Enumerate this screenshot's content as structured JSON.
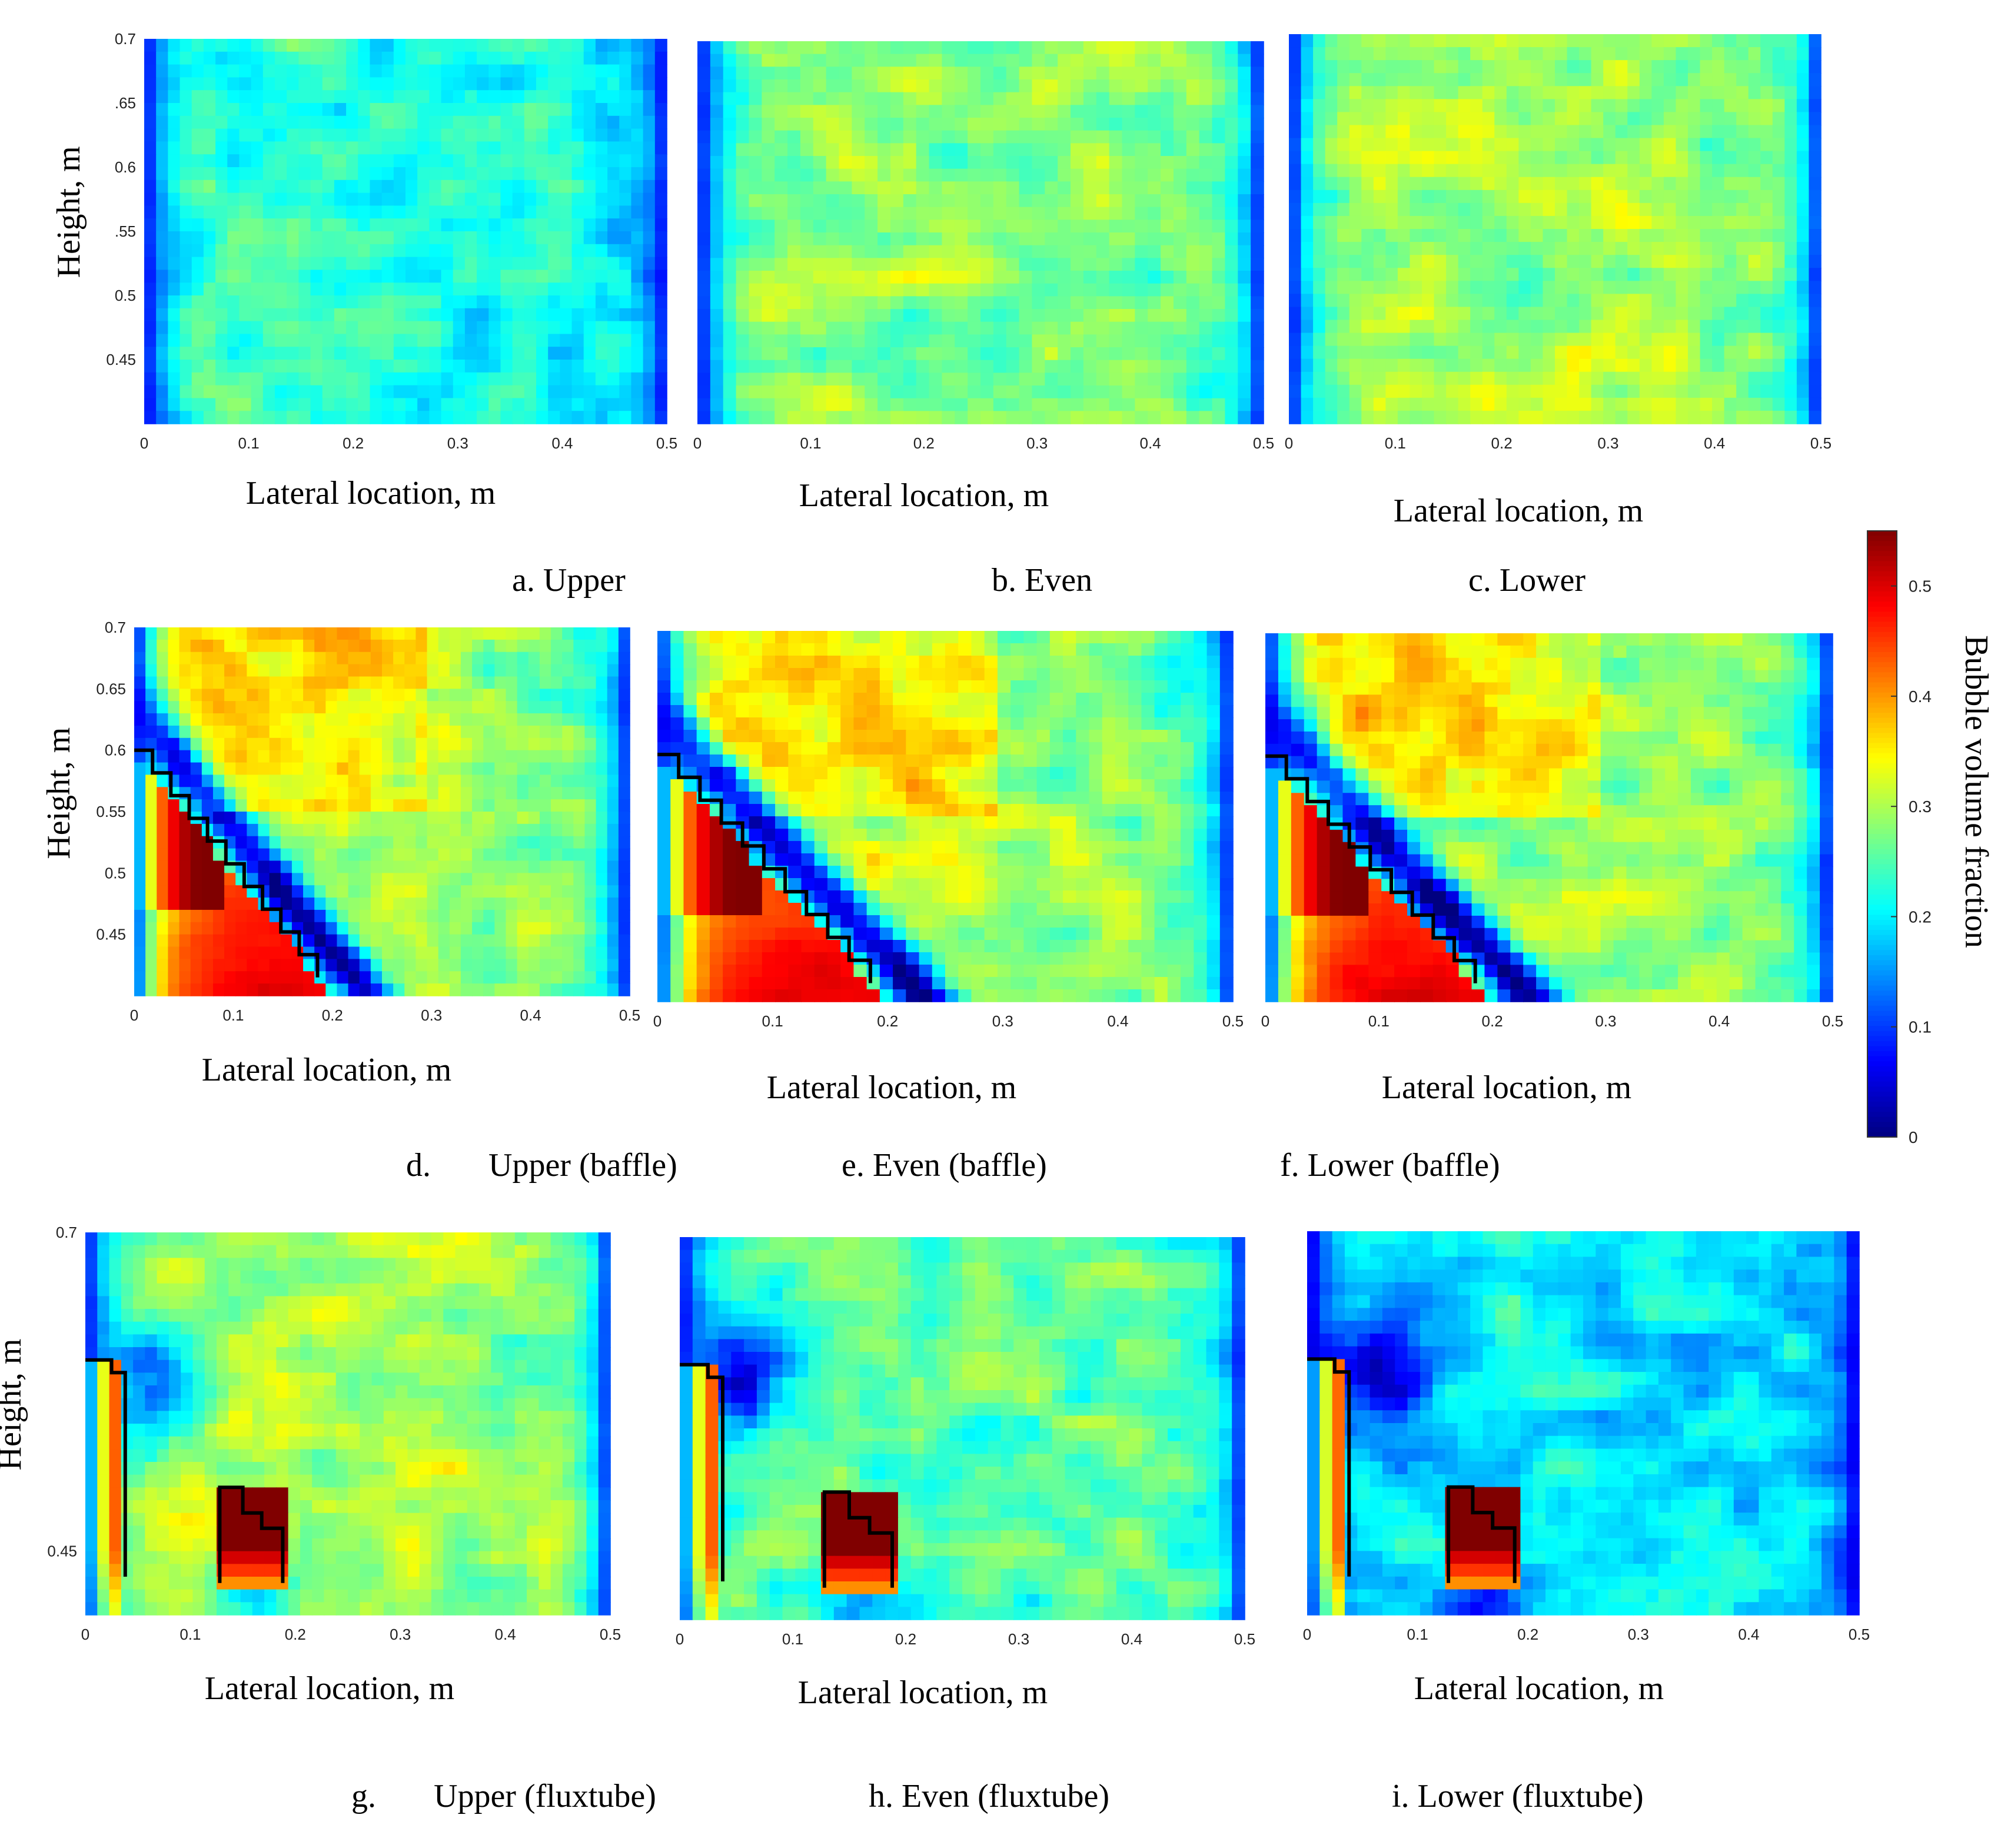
{
  "figure": {
    "colorbar": {
      "label": "Bubble volume fraction",
      "range": [
        0,
        0.55
      ],
      "ticks": [
        "0",
        "0.1",
        "0.2",
        "0.3",
        "0.4",
        "0.5"
      ],
      "colormap": "jet"
    }
  },
  "chart_data": [
    {
      "id": "a",
      "type": "heatmap",
      "caption": "a. Upper",
      "xlabel": "Lateral location, m",
      "ylabel": "Height, m",
      "xlim": [
        0,
        0.5
      ],
      "ylim": [
        0.4,
        0.7
      ],
      "xticks": [
        "0",
        "0.1",
        "0.2",
        "0.3",
        "0.4",
        "0.5"
      ],
      "yticks": [
        "0.7",
        ".65",
        "0.6",
        ".55",
        "0.5",
        "0.45"
      ],
      "obstacle": "none",
      "level_center": 0.25,
      "level_right": 0.2,
      "wall_value": 0.05
    },
    {
      "id": "b",
      "type": "heatmap",
      "caption": "b. Even",
      "xlabel": "Lateral location, m",
      "ylabel": "",
      "xlim": [
        0,
        0.5
      ],
      "ylim": [
        0.4,
        0.7
      ],
      "xticks": [
        "0",
        "0.1",
        "0.2",
        "0.3",
        "0.4",
        "0.5"
      ],
      "yticks": [],
      "obstacle": "none",
      "level_center": 0.29,
      "level_right": 0.27,
      "wall_value": 0.05
    },
    {
      "id": "c",
      "type": "heatmap",
      "caption": "c. Lower",
      "xlabel": "Lateral location, m",
      "ylabel": "",
      "xlim": [
        0,
        0.5
      ],
      "ylim": [
        0.4,
        0.7
      ],
      "xticks": [
        "0",
        "0.1",
        "0.2",
        "0.3",
        "0.4",
        "0.5"
      ],
      "yticks": [],
      "obstacle": "none",
      "level_center": 0.3,
      "level_right": 0.28,
      "wall_value": 0.05
    },
    {
      "id": "d",
      "type": "heatmap",
      "caption": "d.       Upper (baffle)",
      "xlabel": "Lateral location, m",
      "ylabel": "Height, m",
      "xlim": [
        0,
        0.5
      ],
      "ylim": [
        0.4,
        0.7
      ],
      "xticks": [
        "0",
        "0.1",
        "0.2",
        "0.3",
        "0.4",
        "0.5"
      ],
      "yticks": [
        "0.7",
        "0.65",
        "0.6",
        "0.55",
        "0.5",
        "0.45"
      ],
      "obstacle": "baffle",
      "level_center": 0.33,
      "level_right": 0.26,
      "wall_value": 0.05
    },
    {
      "id": "e",
      "type": "heatmap",
      "caption": "e. Even (baffle)",
      "xlabel": "Lateral location, m",
      "ylabel": "",
      "xlim": [
        0,
        0.5
      ],
      "ylim": [
        0.4,
        0.7
      ],
      "xticks": [
        "0",
        "0.1",
        "0.2",
        "0.3",
        "0.4",
        "0.5"
      ],
      "yticks": [],
      "obstacle": "baffle",
      "level_center": 0.33,
      "level_right": 0.26,
      "wall_value": 0.05
    },
    {
      "id": "f",
      "type": "heatmap",
      "caption": "f. Lower (baffle)",
      "xlabel": "Lateral location, m",
      "ylabel": "",
      "xlim": [
        0,
        0.5
      ],
      "ylim": [
        0.4,
        0.7
      ],
      "xticks": [
        "0",
        "0.1",
        "0.2",
        "0.3",
        "0.4",
        "0.5"
      ],
      "yticks": [],
      "obstacle": "baffle",
      "level_center": 0.32,
      "level_right": 0.27,
      "wall_value": 0.05
    },
    {
      "id": "g",
      "type": "heatmap",
      "caption": "g.       Upper (fluxtube)",
      "xlabel": "Lateral location, m",
      "ylabel": "Height, m",
      "xlim": [
        0,
        0.5
      ],
      "ylim": [
        0.4,
        0.7
      ],
      "xticks": [
        "0",
        "0.1",
        "0.2",
        "0.3",
        "0.4",
        "0.5"
      ],
      "yticks": [
        "0.7",
        "0.45"
      ],
      "obstacle": "fluxtube",
      "level_center": 0.31,
      "level_right": 0.28,
      "wall_value": 0.05
    },
    {
      "id": "h",
      "type": "heatmap",
      "caption": "h. Even (fluxtube)",
      "xlabel": "Lateral location, m",
      "ylabel": "",
      "xlim": [
        0,
        0.5
      ],
      "ylim": [
        0.4,
        0.7
      ],
      "xticks": [
        "0",
        "0.1",
        "0.2",
        "0.3",
        "0.4",
        "0.5"
      ],
      "yticks": [],
      "obstacle": "fluxtube",
      "level_center": 0.27,
      "level_right": 0.25,
      "wall_value": 0.05
    },
    {
      "id": "i",
      "type": "heatmap",
      "caption": "i. Lower (fluxtube)",
      "xlabel": "Lateral location, m",
      "ylabel": "",
      "xlim": [
        0,
        0.5
      ],
      "ylim": [
        0.4,
        0.7
      ],
      "xticks": [
        "0",
        "0.1",
        "0.2",
        "0.3",
        "0.4",
        "0.5"
      ],
      "yticks": [],
      "obstacle": "fluxtube",
      "level_center": 0.21,
      "level_right": 0.19,
      "wall_value": 0.03
    }
  ]
}
